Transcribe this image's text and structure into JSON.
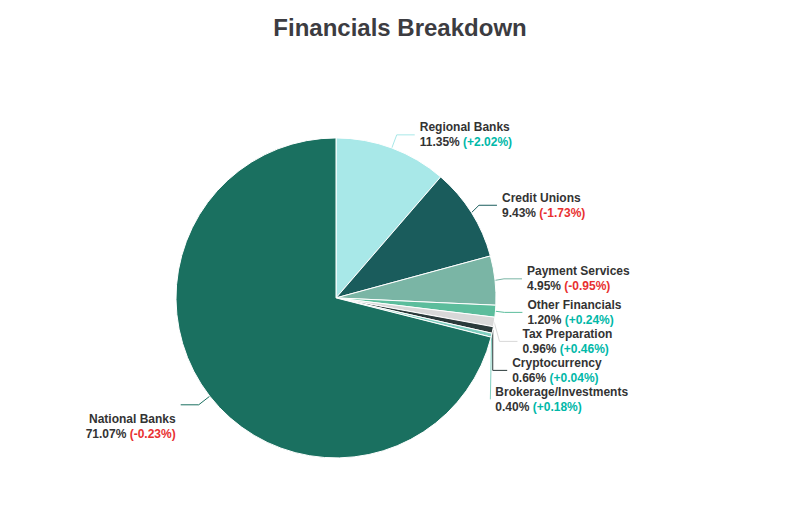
{
  "chart_data": {
    "type": "pie",
    "title": "Financials Breakdown",
    "categories": [
      "Regional Banks",
      "Credit Unions",
      "Payment Services",
      "Other Financials",
      "Tax Preparation",
      "Cryptocurrency",
      "Brokerage/Investments",
      "National Banks"
    ],
    "values": [
      11.35,
      9.43,
      4.95,
      1.2,
      0.96,
      0.66,
      0.4,
      71.07
    ],
    "value_labels": [
      "11.35%",
      "9.43%",
      "4.95%",
      "1.20%",
      "0.96%",
      "0.66%",
      "0.40%",
      "71.07%"
    ],
    "changes": [
      "(+2.02%)",
      "(-1.73%)",
      "(-0.95%)",
      "(+0.24%)",
      "(+0.46%)",
      "(+0.04%)",
      "(+0.18%)",
      "(-0.23%)"
    ],
    "change_colors": [
      "#00b8a8",
      "#e83030",
      "#e83030",
      "#00b8a8",
      "#00b8a8",
      "#00b8a8",
      "#00b8a8",
      "#e83030"
    ],
    "colors": [
      "#a8e8e8",
      "#1a5c5c",
      "#7ab5a5",
      "#5cbd9c",
      "#d8d8d8",
      "#2a3a3a",
      "#80cfc0",
      "#1a7060"
    ],
    "data_labels": true
  }
}
